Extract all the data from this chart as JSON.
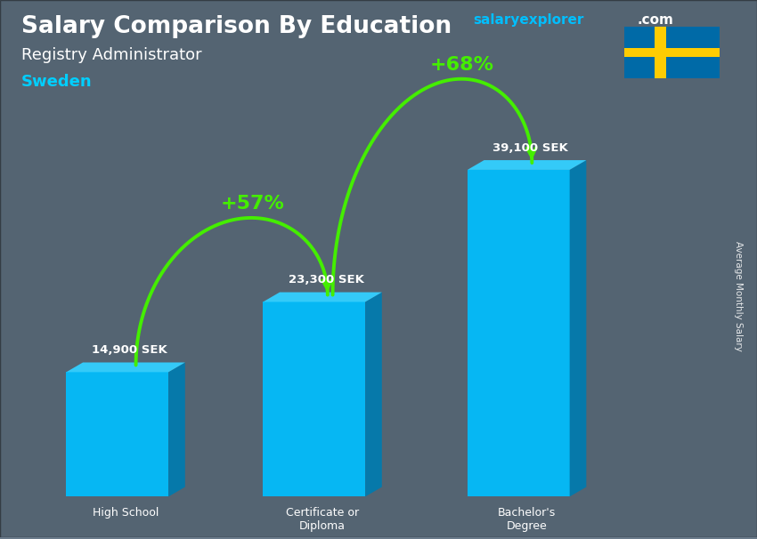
{
  "title": "Salary Comparison By Education",
  "subtitle": "Registry Administrator",
  "country": "Sweden",
  "categories": [
    "High School",
    "Certificate or\nDiploma",
    "Bachelor's\nDegree"
  ],
  "values": [
    14900,
    23300,
    39100
  ],
  "value_labels": [
    "14,900 SEK",
    "23,300 SEK",
    "39,100 SEK"
  ],
  "pct_labels": [
    "+57%",
    "+68%"
  ],
  "bar_face_color": "#00BFFF",
  "bar_side_color": "#007BAF",
  "bar_top_color": "#33CFFF",
  "bg_color": "#6a7a8a",
  "overlay_color": "#3a4a55",
  "title_color": "#FFFFFF",
  "subtitle_color": "#FFFFFF",
  "country_color": "#00CFFF",
  "label_color": "#FFFFFF",
  "pct_color": "#88FF00",
  "arrow_color": "#44EE00",
  "ylabel": "Average Monthly Salary",
  "brand_salaryexplorer_color": "#00BFFF",
  "brand_com_color": "#FFFFFF",
  "sweden_blue": "#006AA7",
  "sweden_yellow": "#FECC02"
}
